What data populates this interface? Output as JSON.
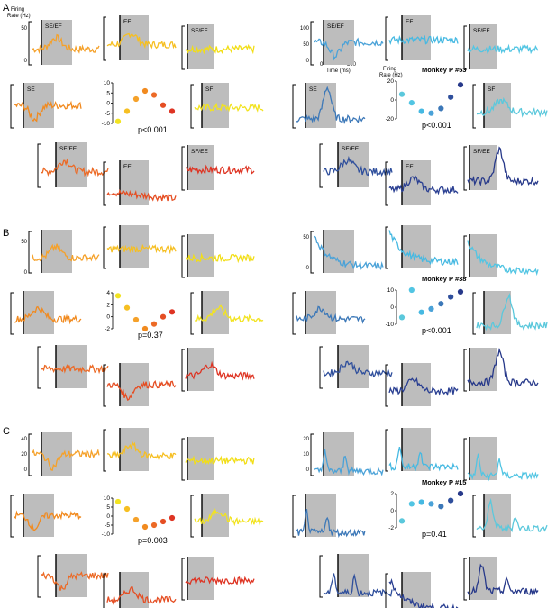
{
  "panel_labels": [
    "A",
    "B",
    "C"
  ],
  "axis_text": {
    "firing_rate_a": "Firing\nRate (Hz)",
    "firing_rate_b": "Firing\nRate (Hz)",
    "time_label": "Time (ms)",
    "time_ticks": [
      "0",
      "300"
    ]
  },
  "colors": {
    "SE": "#f18a1f",
    "SE/EF": "#f5a12a",
    "EF": "#f6bf22",
    "SF/EF": "#f2de16",
    "SF": "#f2e320",
    "SE/EE": "#ec6a26",
    "EE": "#e54e23",
    "SF/EE": "#de3423",
    "SE_blue": "#3c78b8",
    "SE/EF_blue": "#4aa2d8",
    "EF_blue": "#46b9e2",
    "SF/EF_blue": "#52c5e3",
    "SF_blue": "#5bc8dc",
    "SE/EE_blue": "#2f4f9c",
    "EE_blue": "#2a3f92",
    "SF/EE_blue": "#27398a"
  },
  "chart_data": [
    {
      "type": "scatter",
      "panel": "A",
      "side": "left",
      "title": "",
      "ylabel": "Firing Rate (Hz)",
      "yticks": [
        "10",
        "5",
        "0",
        "-5",
        "-10"
      ],
      "ylim": [
        -10,
        10
      ],
      "x": [
        1,
        2,
        3,
        4,
        5,
        6,
        7
      ],
      "values": [
        -9,
        -4,
        2,
        6,
        4,
        -1,
        -4
      ],
      "colors": [
        "#f2e320",
        "#f6bf22",
        "#f5a12a",
        "#f18a1f",
        "#ec6a26",
        "#e54e23",
        "#de3423"
      ],
      "annotation": "p<0.001",
      "trace_axis_ticks": [
        "50",
        "0"
      ],
      "trace_titles": [
        "SE/EF",
        "EF",
        "SF/EF",
        "SE",
        "SF",
        "SE/EE",
        "EE",
        "SF/EE"
      ]
    },
    {
      "type": "scatter",
      "panel": "A",
      "side": "right",
      "title": "Monkey P #53",
      "ylabel": "Firing Rate (Hz)",
      "yticks": [
        "20",
        "0",
        "-20"
      ],
      "ylim": [
        -20,
        20
      ],
      "x": [
        1,
        2,
        3,
        4,
        5,
        6,
        7
      ],
      "values": [
        6,
        -3,
        -12,
        -14,
        -9,
        3,
        16
      ],
      "colors": [
        "#5bc8dc",
        "#52c5e3",
        "#46b9e2",
        "#4aa2d8",
        "#3c78b8",
        "#2f4f9c",
        "#27398a"
      ],
      "annotation": "p<0.001",
      "trace_axis_ticks": [
        "100",
        "50",
        "0"
      ],
      "trace_titles": [
        "SE/EF",
        "EF",
        "SF/EF",
        "SE",
        "SF",
        "SE/EE",
        "EE",
        "SF/EE"
      ]
    },
    {
      "type": "scatter",
      "panel": "B",
      "side": "left",
      "title": "",
      "yticks": [
        "4",
        "2",
        "0",
        "-2"
      ],
      "ylim": [
        -2,
        4
      ],
      "x": [
        1,
        2,
        3,
        4,
        5,
        6,
        7
      ],
      "values": [
        3.5,
        1.5,
        -0.5,
        -2,
        -1.2,
        0,
        0.8
      ],
      "colors": [
        "#f2e320",
        "#f6bf22",
        "#f5a12a",
        "#f18a1f",
        "#ec6a26",
        "#e54e23",
        "#de3423"
      ],
      "annotation": "p=0.37",
      "trace_axis_ticks": [
        "50",
        "0"
      ]
    },
    {
      "type": "scatter",
      "panel": "B",
      "side": "right",
      "title": "Monkey P #38",
      "yticks": [
        "10",
        "0",
        "-10"
      ],
      "ylim": [
        -10,
        10
      ],
      "x": [
        1,
        2,
        3,
        4,
        5,
        6,
        7
      ],
      "values": [
        -6,
        10,
        -3,
        -1,
        2,
        6,
        9
      ],
      "colors": [
        "#5bc8dc",
        "#52c5e3",
        "#46b9e2",
        "#4aa2d8",
        "#3c78b8",
        "#2f4f9c",
        "#27398a"
      ],
      "annotation": "p<0.001",
      "trace_axis_ticks": [
        "50",
        "0"
      ]
    },
    {
      "type": "scatter",
      "panel": "C",
      "side": "left",
      "title": "",
      "yticks": [
        "10",
        "5",
        "0",
        "-5",
        "-10"
      ],
      "ylim": [
        -10,
        10
      ],
      "x": [
        1,
        2,
        3,
        4,
        5,
        6,
        7
      ],
      "values": [
        8,
        4,
        -2,
        -6,
        -5,
        -3,
        -1
      ],
      "colors": [
        "#f2e320",
        "#f6bf22",
        "#f5a12a",
        "#f18a1f",
        "#ec6a26",
        "#e54e23",
        "#de3423"
      ],
      "annotation": "p=0.003",
      "trace_axis_ticks": [
        "40",
        "20",
        "0"
      ]
    },
    {
      "type": "scatter",
      "panel": "C",
      "side": "right",
      "title": "Monkey P #15",
      "yticks": [
        "2",
        "0",
        "-2"
      ],
      "ylim": [
        -2,
        2
      ],
      "x": [
        1,
        2,
        3,
        4,
        5,
        6,
        7
      ],
      "values": [
        -1.2,
        0.8,
        1.0,
        0.8,
        0.5,
        1.2,
        2.0
      ],
      "colors": [
        "#5bc8dc",
        "#52c5e3",
        "#46b9e2",
        "#4aa2d8",
        "#3c78b8",
        "#2f4f9c",
        "#27398a"
      ],
      "annotation": "p=0.41",
      "trace_axis_ticks": [
        "20",
        "10",
        "0"
      ]
    }
  ]
}
